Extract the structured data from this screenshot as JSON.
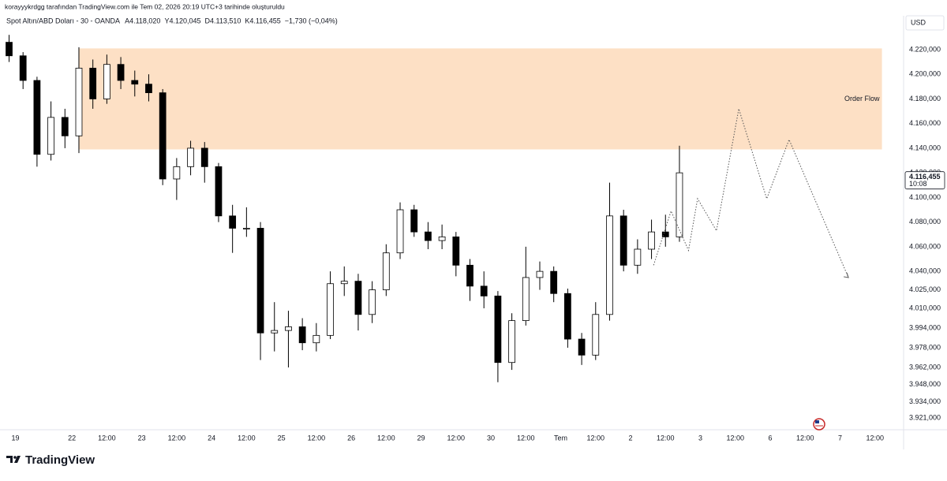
{
  "credit": "korayyykrdgg tarafından TradingView.com ile Tem 02, 2026 20:19 UTC+3 tarihinde oluşturuldu",
  "branding": "TradingView",
  "chart_data": {
    "type": "candlestick",
    "title": "Spot Altın/ABD Doları - 30 - OANDA",
    "ohlc_labels": [
      "A4.118,020",
      "Y4.120,045",
      "D4.113,510",
      "K4.116,455",
      "−1,730 (−0,04%)"
    ],
    "currency": "USD",
    "x": [
      0.1,
      0.3,
      0.5,
      0.7,
      0.9,
      1.1,
      1.3,
      1.5,
      1.7,
      1.9,
      2.1,
      2.3,
      2.5,
      2.7,
      2.9,
      3.1,
      3.3,
      3.5,
      3.7,
      3.9,
      4.1,
      4.3,
      4.5,
      4.7,
      4.9,
      5.1,
      5.3,
      5.5,
      5.7,
      5.9,
      6.1,
      6.3,
      6.5,
      6.7,
      6.9,
      7.1,
      7.3,
      7.5,
      7.7,
      7.9,
      8.1,
      8.3,
      8.5,
      8.7,
      8.9,
      9.1,
      9.3,
      9.5,
      9.7
    ],
    "open": [
      4226,
      4215,
      4195,
      4135,
      4165,
      4150,
      4205,
      4180,
      4208,
      4195,
      4192,
      4185,
      4115,
      4125,
      4140,
      4125,
      4085,
      4075,
      4075,
      3990,
      3992,
      3995,
      3982,
      3988,
      4030,
      4032,
      4005,
      4025,
      4055,
      4090,
      4072,
      4065,
      4068,
      4045,
      4028,
      4020,
      3966,
      4000,
      4035,
      4040,
      4022,
      3985,
      3972,
      4005,
      4085,
      4045,
      4058,
      4072,
      4068
    ],
    "high": [
      4232,
      4218,
      4198,
      4178,
      4172,
      4222,
      4212,
      4216,
      4214,
      4203,
      4200,
      4188,
      4132,
      4146,
      4145,
      4128,
      4094,
      4092,
      4080,
      4015,
      4008,
      4002,
      3998,
      4040,
      4044,
      4038,
      4032,
      4062,
      4096,
      4094,
      4080,
      4078,
      4072,
      4050,
      4040,
      4024,
      4006,
      4060,
      4048,
      4044,
      4026,
      3990,
      4015,
      4112,
      4090,
      4066,
      4082,
      4086,
      4142
    ],
    "low": [
      4210,
      4188,
      4125,
      4130,
      4140,
      4136,
      4172,
      4176,
      4188,
      4182,
      4178,
      4110,
      4098,
      4118,
      4112,
      4080,
      4055,
      4068,
      3968,
      3975,
      3962,
      3976,
      3975,
      3985,
      4020,
      3992,
      3998,
      4020,
      4050,
      4068,
      4058,
      4058,
      4036,
      4016,
      4010,
      3950,
      3960,
      3996,
      4025,
      4015,
      3978,
      3964,
      3968,
      4000,
      4040,
      4038,
      4050,
      4060,
      4064
    ],
    "close": [
      4215,
      4195,
      4135,
      4165,
      4150,
      4205,
      4180,
      4208,
      4195,
      4192,
      4185,
      4115,
      4125,
      4140,
      4125,
      4085,
      4075,
      4075,
      3990,
      3992,
      3995,
      3982,
      3988,
      4030,
      4032,
      4005,
      4025,
      4055,
      4090,
      4072,
      4065,
      4068,
      4045,
      4028,
      4020,
      3966,
      4000,
      4035,
      4040,
      4022,
      3985,
      3972,
      4005,
      4085,
      4045,
      4058,
      4072,
      4068,
      4120
    ],
    "up_color": "#ffffff",
    "down_color": "#000000",
    "wick_color": "#000000",
    "xlim": [
      -0.03,
      12.91
    ],
    "ylim": [
      3911.4,
      4234.7
    ],
    "xticks": [
      {
        "value": 0.19,
        "label": "19"
      },
      {
        "value": 1,
        "label": "22"
      },
      {
        "value": 1.5,
        "label": "12:00"
      },
      {
        "value": 2,
        "label": "23"
      },
      {
        "value": 2.5,
        "label": "12:00"
      },
      {
        "value": 3,
        "label": "24"
      },
      {
        "value": 3.5,
        "label": "12:00"
      },
      {
        "value": 4,
        "label": "25"
      },
      {
        "value": 4.5,
        "label": "12:00"
      },
      {
        "value": 5,
        "label": "26"
      },
      {
        "value": 5.5,
        "label": "12:00"
      },
      {
        "value": 6,
        "label": "29"
      },
      {
        "value": 6.5,
        "label": "12:00"
      },
      {
        "value": 7,
        "label": "30"
      },
      {
        "value": 7.5,
        "label": "12:00"
      },
      {
        "value": 8,
        "label": "Tem"
      },
      {
        "value": 8.5,
        "label": "12:00"
      },
      {
        "value": 9,
        "label": "2"
      },
      {
        "value": 9.5,
        "label": "12:00"
      },
      {
        "value": 10,
        "label": "3"
      },
      {
        "value": 10.5,
        "label": "12:00"
      },
      {
        "value": 11,
        "label": "6"
      },
      {
        "value": 11.5,
        "label": "12:00"
      },
      {
        "value": 12,
        "label": "7"
      },
      {
        "value": 12.5,
        "label": "12:00"
      }
    ],
    "yticks": [
      {
        "value": 4220,
        "label": "4.220,000"
      },
      {
        "value": 4200,
        "label": "4.200,000"
      },
      {
        "value": 4180,
        "label": "4.180,000"
      },
      {
        "value": 4160,
        "label": "4.160,000"
      },
      {
        "value": 4140,
        "label": "4.140,000"
      },
      {
        "value": 4120,
        "label": "4.120,000"
      },
      {
        "value": 4100,
        "label": "4.100,000"
      },
      {
        "value": 4080,
        "label": "4.080,000"
      },
      {
        "value": 4060,
        "label": "4.060,000"
      },
      {
        "value": 4040,
        "label": "4.040,000"
      },
      {
        "value": 4025,
        "label": "4.025,000"
      },
      {
        "value": 4010,
        "label": "4.010,000"
      },
      {
        "value": 3994,
        "label": "3.994,000"
      },
      {
        "value": 3978,
        "label": "3.978,000"
      },
      {
        "value": 3962,
        "label": "3.962,000"
      },
      {
        "value": 3948,
        "label": "3.948,000"
      },
      {
        "value": 3934,
        "label": "3.934,000"
      },
      {
        "value": 3921,
        "label": "3.921,000"
      }
    ],
    "grid": false,
    "zone": {
      "label": "Order Flow",
      "xlim": [
        1.1,
        12.6
      ],
      "ylim": [
        4139,
        4221
      ],
      "color": "#fde0c5"
    },
    "projection": {
      "x": [
        9.33,
        9.58,
        9.83,
        9.96,
        10.23,
        10.55,
        10.95,
        11.27,
        12.12
      ],
      "y": [
        4045,
        4089,
        4057,
        4099,
        4073,
        4172,
        4099,
        4147,
        4035
      ],
      "color": "#555555"
    },
    "last_price": {
      "value": 4116.455,
      "label": "4.116,455",
      "countdown": "10:08"
    }
  }
}
